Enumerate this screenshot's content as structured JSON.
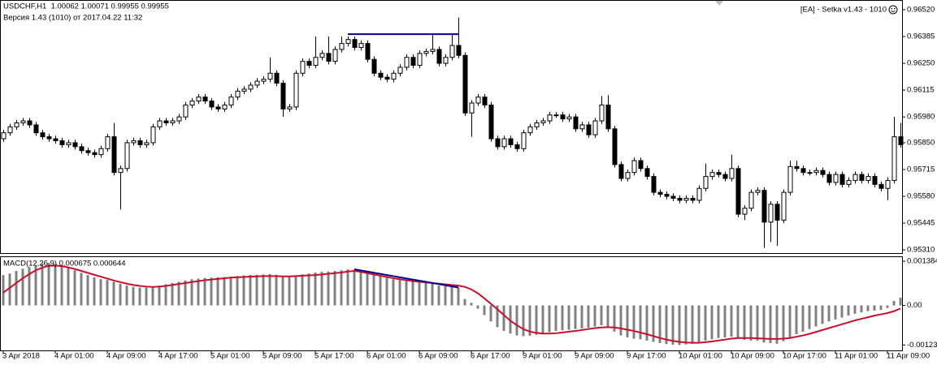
{
  "chart_data": [
    {
      "type": "candlestick",
      "title": "USDCHF,H1  1.00062 1.00071 0.99955 0.99955",
      "subtitle": "Версия 1.43 (1010) от 2017.04.22 11:32",
      "annotation": "[EA] - Setka v1.43 - 1010",
      "bull_color": "#ffffff",
      "bear_color": "#000000",
      "open": [
        0.9587,
        0.959,
        0.9593,
        0.9595,
        0.9596,
        0.9594,
        0.959,
        0.9588,
        0.9587,
        0.9586,
        0.9584,
        0.9585,
        0.9583,
        0.9581,
        0.958,
        0.9579,
        0.9582,
        0.9588,
        0.957,
        0.9572,
        0.9585,
        0.9586,
        0.9584,
        0.9585,
        0.9593,
        0.9596,
        0.9595,
        0.9596,
        0.9598,
        0.9604,
        0.9606,
        0.9608,
        0.9606,
        0.9603,
        0.9602,
        0.9604,
        0.9608,
        0.9611,
        0.9612,
        0.9614,
        0.9616,
        0.9617,
        0.962,
        0.9615,
        0.9602,
        0.9603,
        0.962,
        0.9626,
        0.9624,
        0.9628,
        0.963,
        0.9626,
        0.9632,
        0.9635,
        0.9637,
        0.9633,
        0.9635,
        0.9627,
        0.962,
        0.9618,
        0.9617,
        0.962,
        0.9623,
        0.9628,
        0.9624,
        0.963,
        0.9631,
        0.9632,
        0.9625,
        0.9628,
        0.9634,
        0.9629,
        0.96,
        0.9605,
        0.9608,
        0.9604,
        0.9587,
        0.9583,
        0.9587,
        0.9584,
        0.9582,
        0.959,
        0.9593,
        0.9595,
        0.9596,
        0.9599,
        0.9599,
        0.9597,
        0.9598,
        0.9592,
        0.9594,
        0.9589,
        0.9596,
        0.9604,
        0.9592,
        0.9574,
        0.9567,
        0.957,
        0.9576,
        0.9572,
        0.9568,
        0.956,
        0.9559,
        0.9558,
        0.9557,
        0.9556,
        0.9557,
        0.9556,
        0.9562,
        0.9568,
        0.957,
        0.9569,
        0.9567,
        0.9572,
        0.9549,
        0.9552,
        0.956,
        0.9561,
        0.9545,
        0.9554,
        0.9546,
        0.956,
        0.9573,
        0.9572,
        0.957,
        0.957,
        0.9571,
        0.9569,
        0.9565,
        0.9569,
        0.9564,
        0.9566,
        0.9569,
        0.9566,
        0.9568,
        0.9564,
        0.9562,
        0.9566,
        0.9588
      ],
      "high": [
        0.95915,
        0.95945,
        0.95965,
        0.95975,
        0.95975,
        0.95955,
        0.95915,
        0.95895,
        0.95885,
        0.95875,
        0.95865,
        0.95865,
        0.95845,
        0.95825,
        0.95815,
        0.95835,
        0.95895,
        0.9595,
        0.95735,
        0.95865,
        0.95875,
        0.95875,
        0.95865,
        0.95945,
        0.95975,
        0.95975,
        0.95975,
        0.95995,
        0.96055,
        0.96075,
        0.96095,
        0.96095,
        0.96075,
        0.96045,
        0.96055,
        0.96095,
        0.96125,
        0.96135,
        0.96155,
        0.96175,
        0.96185,
        0.9628,
        0.96215,
        0.96165,
        0.96045,
        0.96215,
        0.96275,
        0.96275,
        0.96385,
        0.96315,
        0.96385,
        0.96335,
        0.96385,
        0.96385,
        0.96385,
        0.96365,
        0.96365,
        0.96285,
        0.96215,
        0.96195,
        0.96215,
        0.96245,
        0.96295,
        0.96295,
        0.96315,
        0.96325,
        0.964,
        0.96335,
        0.96295,
        0.964,
        0.9648,
        0.96305,
        0.96065,
        0.96095,
        0.96095,
        0.96055,
        0.95885,
        0.95885,
        0.95885,
        0.95855,
        0.95915,
        0.95945,
        0.95965,
        0.95975,
        0.96005,
        0.96005,
        0.96005,
        0.95995,
        0.95995,
        0.95955,
        0.95955,
        0.95975,
        0.96085,
        0.9609,
        0.95935,
        0.95755,
        0.95715,
        0.95775,
        0.95775,
        0.95735,
        0.95695,
        0.95615,
        0.95605,
        0.95595,
        0.95585,
        0.95585,
        0.95585,
        0.95635,
        0.95745,
        0.95715,
        0.95715,
        0.95705,
        0.9579,
        0.95735,
        0.95535,
        0.95615,
        0.95625,
        0.95625,
        0.95555,
        0.95555,
        0.95615,
        0.9576,
        0.9576,
        0.95735,
        0.95715,
        0.95725,
        0.95725,
        0.95705,
        0.95705,
        0.95705,
        0.95675,
        0.95705,
        0.95705,
        0.95695,
        0.95695,
        0.95655,
        0.95675,
        0.9598,
        0.9595
      ],
      "low": [
        0.95855,
        0.95885,
        0.95915,
        0.95935,
        0.95925,
        0.95885,
        0.95865,
        0.95855,
        0.95845,
        0.95825,
        0.95825,
        0.95815,
        0.95795,
        0.95785,
        0.95775,
        0.95775,
        0.95805,
        0.95685,
        0.95514,
        0.95705,
        0.95835,
        0.95825,
        0.95825,
        0.95835,
        0.95915,
        0.95935,
        0.95935,
        0.95945,
        0.95965,
        0.96025,
        0.96045,
        0.96045,
        0.96015,
        0.96005,
        0.96005,
        0.96025,
        0.96065,
        0.96095,
        0.96105,
        0.96125,
        0.96145,
        0.96155,
        0.96135,
        0.9598,
        0.96005,
        0.96015,
        0.96185,
        0.96225,
        0.96225,
        0.96265,
        0.96245,
        0.96245,
        0.96305,
        0.96335,
        0.96315,
        0.96315,
        0.96255,
        0.96185,
        0.96165,
        0.96155,
        0.96155,
        0.96185,
        0.96215,
        0.96225,
        0.96225,
        0.96285,
        0.96295,
        0.96235,
        0.96235,
        0.96265,
        0.96275,
        0.95985,
        0.9588,
        0.96035,
        0.96025,
        0.95855,
        0.95815,
        0.95815,
        0.95825,
        0.95805,
        0.95805,
        0.95885,
        0.95915,
        0.95935,
        0.95945,
        0.95975,
        0.95955,
        0.95955,
        0.95905,
        0.95905,
        0.95875,
        0.95875,
        0.95945,
        0.95905,
        0.95725,
        0.95655,
        0.95655,
        0.95685,
        0.95705,
        0.95665,
        0.95585,
        0.95575,
        0.95565,
        0.95555,
        0.95545,
        0.95545,
        0.95545,
        0.95545,
        0.95605,
        0.95665,
        0.95675,
        0.95655,
        0.95655,
        0.95475,
        0.9546,
        0.95505,
        0.95585,
        0.9532,
        0.9535,
        0.9533,
        0.95445,
        0.95585,
        0.95705,
        0.95685,
        0.95685,
        0.95685,
        0.95675,
        0.95635,
        0.95635,
        0.95625,
        0.95625,
        0.95645,
        0.95645,
        0.95645,
        0.95625,
        0.95605,
        0.9556,
        0.95645,
        0.95825
      ],
      "close": [
        0.959,
        0.9593,
        0.9595,
        0.9596,
        0.9594,
        0.959,
        0.9588,
        0.9587,
        0.9586,
        0.9584,
        0.9585,
        0.9583,
        0.9581,
        0.958,
        0.9579,
        0.9582,
        0.9588,
        0.957,
        0.9572,
        0.9585,
        0.9586,
        0.9584,
        0.9585,
        0.9593,
        0.9596,
        0.9595,
        0.9596,
        0.9598,
        0.9604,
        0.9606,
        0.9608,
        0.9606,
        0.9603,
        0.9602,
        0.9604,
        0.9608,
        0.9611,
        0.9612,
        0.9614,
        0.9616,
        0.9617,
        0.962,
        0.9615,
        0.9602,
        0.9603,
        0.962,
        0.9626,
        0.9624,
        0.9628,
        0.963,
        0.9626,
        0.9632,
        0.9635,
        0.9637,
        0.9633,
        0.9635,
        0.9627,
        0.962,
        0.9618,
        0.9617,
        0.962,
        0.9623,
        0.9628,
        0.9624,
        0.963,
        0.9631,
        0.9632,
        0.9625,
        0.9628,
        0.9634,
        0.9629,
        0.96,
        0.9605,
        0.9608,
        0.9604,
        0.9587,
        0.9583,
        0.9587,
        0.9584,
        0.9582,
        0.959,
        0.9593,
        0.9595,
        0.9596,
        0.9599,
        0.9599,
        0.9597,
        0.9598,
        0.9592,
        0.9594,
        0.9589,
        0.9596,
        0.9604,
        0.9592,
        0.9574,
        0.9567,
        0.957,
        0.9576,
        0.9572,
        0.9568,
        0.956,
        0.9559,
        0.9558,
        0.9557,
        0.9556,
        0.9557,
        0.9556,
        0.9562,
        0.9568,
        0.957,
        0.9569,
        0.9567,
        0.9572,
        0.9549,
        0.9552,
        0.956,
        0.9561,
        0.9545,
        0.9554,
        0.9546,
        0.956,
        0.9573,
        0.9572,
        0.957,
        0.957,
        0.9571,
        0.9569,
        0.9565,
        0.9569,
        0.9564,
        0.9566,
        0.9569,
        0.9566,
        0.9568,
        0.9564,
        0.9562,
        0.9566,
        0.9588,
        0.9584
      ],
      "ylim": [
        0.9529,
        0.96569
      ],
      "yticks": [
        {
          "value": 0.9652,
          "label": "0.96520"
        },
        0.96385,
        {
          "value": 0.9625,
          "label": "0.96250"
        },
        0.96115,
        {
          "value": 0.9598,
          "label": "0.95980"
        },
        {
          "value": 0.9585,
          "label": "0.95850"
        },
        0.95715,
        {
          "value": 0.9558,
          "label": "0.95580"
        },
        0.95445,
        {
          "value": 0.9531,
          "label": "0.95310"
        }
      ],
      "trendlines": [
        {
          "color": "#00008b",
          "x": [
            53,
            70
          ],
          "y": [
            0.96397,
            0.96397
          ]
        }
      ]
    },
    {
      "type": "macd",
      "title": "MACD(12,26,9) 0.000675 0.000644",
      "series": [
        {
          "type": "bar",
          "color": "#808080",
          "values": [
            0.00095,
            0.001,
            0.00108,
            0.00115,
            0.0012,
            0.00125,
            0.0013,
            0.00133,
            0.0013,
            0.00125,
            0.00118,
            0.0011,
            0.00102,
            0.00095,
            0.00088,
            0.00082,
            0.0008,
            0.00074,
            0.00068,
            0.00062,
            0.00058,
            0.00056,
            0.00056,
            0.00058,
            0.00062,
            0.00066,
            0.0007,
            0.00074,
            0.00078,
            0.00082,
            0.00084,
            0.00086,
            0.00087,
            0.00088,
            0.00089,
            0.0009,
            0.00092,
            0.00094,
            0.00095,
            0.00096,
            0.00097,
            0.00098,
            0.00096,
            0.00092,
            0.0009,
            0.00093,
            0.00097,
            0.001,
            0.00103,
            0.00105,
            0.00106,
            0.00108,
            0.0011,
            0.00113,
            0.00112,
            0.0011,
            0.00105,
            0.00098,
            0.00092,
            0.00086,
            0.00082,
            0.0008,
            0.00078,
            0.00074,
            0.00072,
            0.0007,
            0.00068,
            0.00062,
            0.0006,
            0.00058,
            0.00056,
            0.0002,
            8e-05,
            -0.0001,
            -0.0003,
            -0.0005,
            -0.00068,
            -0.0008,
            -0.00088,
            -0.00094,
            -0.00096,
            -0.00095,
            -0.00092,
            -0.00088,
            -0.00084,
            -0.0008,
            -0.00078,
            -0.00076,
            -0.00074,
            -0.00072,
            -0.0007,
            -0.00066,
            -0.00062,
            -0.0007,
            -0.00082,
            -0.00094,
            -0.001,
            -0.00104,
            -0.00106,
            -0.0011,
            -0.00114,
            -0.00118,
            -0.00121,
            -0.00123,
            -0.00124,
            -0.00122,
            -0.0012,
            -0.00116,
            -0.0011,
            -0.00106,
            -0.00102,
            -0.001,
            -0.00098,
            -0.00104,
            -0.00108,
            -0.0011,
            -0.0011,
            -0.00116,
            -0.00118,
            -0.0012,
            -0.00112,
            -0.001,
            -0.0009,
            -0.00082,
            -0.00074,
            -0.00066,
            -0.00058,
            -0.0005,
            -0.00044,
            -0.00038,
            -0.00032,
            -0.00026,
            -0.00022,
            -0.00018,
            -0.00016,
            -0.00014,
            -8e-05,
            0.00014,
            0.00024
          ]
        },
        {
          "type": "line",
          "color": "#c8102e",
          "values": [
            0.0004,
            0.00055,
            0.0007,
            0.00085,
            0.00098,
            0.0011,
            0.00118,
            0.00124,
            0.00125,
            0.00123,
            0.00119,
            0.00114,
            0.00108,
            0.00102,
            0.00096,
            0.0009,
            0.00084,
            0.00078,
            0.00073,
            0.00068,
            0.00064,
            0.00061,
            0.00059,
            0.00058,
            0.00059,
            0.00061,
            0.00064,
            0.00067,
            0.0007,
            0.00073,
            0.00076,
            0.00079,
            0.00081,
            0.00083,
            0.00085,
            0.00087,
            0.00088,
            0.00089,
            0.0009,
            0.00091,
            0.00092,
            0.00092,
            0.00092,
            0.00091,
            0.00091,
            0.00092,
            0.00093,
            0.00094,
            0.00095,
            0.00097,
            0.00099,
            0.00101,
            0.00103,
            0.00106,
            0.00108,
            0.00105,
            0.00101,
            0.00097,
            0.00093,
            0.00089,
            0.00085,
            0.00082,
            0.00079,
            0.00076,
            0.00074,
            0.00072,
            0.0007,
            0.00068,
            0.00066,
            0.00064,
            0.00062,
            0.00058,
            0.0005,
            0.00038,
            0.00022,
            5e-05,
            -0.00012,
            -0.0003,
            -0.00048,
            -0.00062,
            -0.00074,
            -0.00082,
            -0.00086,
            -0.00088,
            -0.00088,
            -0.00087,
            -0.00085,
            -0.00082,
            -0.0008,
            -0.00077,
            -0.00074,
            -0.00071,
            -0.00069,
            -0.00068,
            -0.00069,
            -0.00072,
            -0.00076,
            -0.0008,
            -0.00085,
            -0.0009,
            -0.00096,
            -0.00102,
            -0.00107,
            -0.00111,
            -0.00114,
            -0.00116,
            -0.00117,
            -0.00117,
            -0.00115,
            -0.00113,
            -0.0011,
            -0.00107,
            -0.00104,
            -0.00102,
            -0.00102,
            -0.00102,
            -0.00103,
            -0.00104,
            -0.00105,
            -0.00105,
            -0.00104,
            -0.00102,
            -0.00098,
            -0.00094,
            -0.00089,
            -0.00083,
            -0.00077,
            -0.00071,
            -0.00065,
            -0.00059,
            -0.00053,
            -0.00047,
            -0.00042,
            -0.00037,
            -0.00032,
            -0.00028,
            -0.00024,
            -0.00018,
            -0.0001
          ]
        }
      ],
      "ylim": [
        -0.001408,
        0.001512
      ],
      "yticks": [
        0.001384,
        {
          "value": 0,
          "label": "0.00"
        },
        -0.001238
      ],
      "xticks": [
        {
          "value": 0,
          "label": "3 Apr 2018"
        },
        {
          "value": 8,
          "label": "4 Apr 01:00"
        },
        {
          "value": 16,
          "label": "4 Apr 09:00"
        },
        {
          "value": 24,
          "label": "4 Apr 17:00"
        },
        {
          "value": 32,
          "label": "5 Apr 01:00"
        },
        {
          "value": 40,
          "label": "5 Apr 09:00"
        },
        {
          "value": 48,
          "label": "5 Apr 17:00"
        },
        {
          "value": 56,
          "label": "6 Apr 01:00"
        },
        {
          "value": 64,
          "label": "6 Apr 09:00"
        },
        {
          "value": 72,
          "label": "6 Apr 17:00"
        },
        {
          "value": 80,
          "label": "9 Apr 01:00"
        },
        {
          "value": 88,
          "label": "9 Apr 09:00"
        },
        {
          "value": 96,
          "label": "9 Apr 17:00"
        },
        {
          "value": 104,
          "label": "10 Apr 01:00"
        },
        {
          "value": 112,
          "label": "10 Apr 09:00"
        },
        {
          "value": 120,
          "label": "10 Apr 17:00"
        },
        {
          "value": 128,
          "label": "11 Apr 01:00"
        },
        {
          "value": 136,
          "label": "11 Apr 09:00"
        }
      ],
      "trendlines": [
        {
          "color": "#00008b",
          "x": [
            54,
            70
          ],
          "y": [
            0.00113,
            0.00056
          ]
        }
      ]
    }
  ]
}
